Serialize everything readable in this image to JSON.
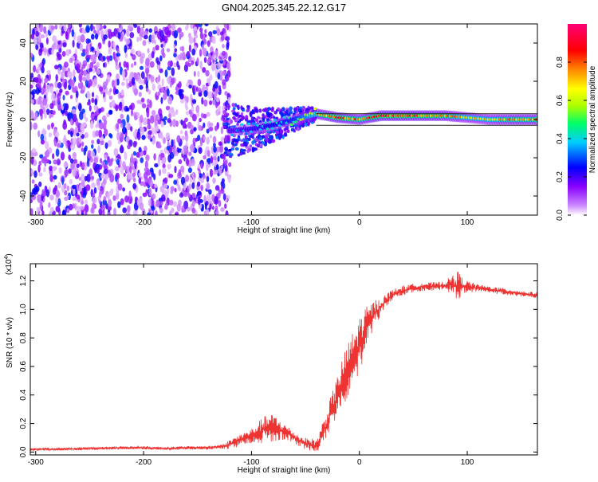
{
  "title": "GN04.2025.345.22.12.G17",
  "colors": {
    "snr_line": "#ee3333",
    "spec_band": "#222222",
    "colorbar": [
      "#ffffff",
      "#cc88ff",
      "#8800ff",
      "#0000ff",
      "#00ccff",
      "#00ff66",
      "#aaff00",
      "#ffff00",
      "#ff8800",
      "#ff0000",
      "#ff0077"
    ]
  },
  "chart_data": [
    {
      "type": "heatmap",
      "xlabel": "Height of straight line (km)",
      "ylabel": "Frequency (Hz)",
      "xlim": [
        -305,
        165
      ],
      "ylim": [
        -50,
        50
      ],
      "x_ticks": [
        -300,
        -200,
        -100,
        0,
        100
      ],
      "x_tick_labels": [
        "-300",
        "-200",
        "-100",
        "0",
        "100"
      ],
      "y_ticks": [
        -40,
        -20,
        0,
        20,
        40
      ],
      "y_tick_labels": [
        "-40",
        "-20",
        "0",
        "20",
        "40"
      ],
      "colorbar": {
        "label": "Normalized spectral amplitude",
        "range": [
          0,
          1
        ],
        "ticks": [
          0.0,
          0.2,
          0.4,
          0.6,
          0.8
        ],
        "tick_labels": [
          "0.0",
          "0.2",
          "0.4",
          "0.6",
          "0.8"
        ]
      },
      "noise_region_x": [
        -305,
        -120
      ],
      "signal_band": {
        "x": [
          -120,
          -100,
          -80,
          -60,
          -40,
          -20,
          0,
          20,
          40,
          60,
          80,
          100,
          120,
          140,
          165
        ],
        "center_hz": [
          -6,
          -5,
          -3,
          0,
          3,
          1,
          0,
          2,
          2,
          2,
          2,
          1,
          0,
          0,
          0
        ],
        "peak_amplitude": [
          0.35,
          0.4,
          0.45,
          0.5,
          0.75,
          0.9,
          0.8,
          0.9,
          0.9,
          0.85,
          0.85,
          0.7,
          0.7,
          0.8,
          0.8
        ]
      },
      "box_frequency_hz": [
        -3,
        3
      ]
    },
    {
      "type": "line",
      "xlabel": "Height of straight line (km)",
      "ylabel": "SNR (10 * v/v)",
      "multiplier_label": "(x10",
      "multiplier_exp": "4",
      "multiplier_close": ")",
      "xlim": [
        -305,
        165
      ],
      "ylim": [
        -0.02,
        1.32
      ],
      "x_ticks": [
        -300,
        -200,
        -100,
        0,
        100
      ],
      "x_tick_labels": [
        "-300",
        "-200",
        "-100",
        "0",
        "100"
      ],
      "y_ticks": [
        0.0,
        0.2,
        0.4,
        0.6,
        0.8,
        1.0,
        1.2
      ],
      "y_tick_labels": [
        "0.0",
        "0.2",
        "0.4",
        "0.6",
        "0.8",
        "1.0",
        "1.2"
      ],
      "series": [
        {
          "x": [
            -305,
            -280,
            -250,
            -220,
            -200,
            -180,
            -160,
            -140,
            -125,
            -115,
            -105,
            -95,
            -88,
            -80,
            -72,
            -64,
            -56,
            -50,
            -44,
            -40,
            -37,
            -35,
            -30,
            -25,
            -20,
            -15,
            -10,
            -5,
            0,
            5,
            10,
            15,
            20,
            25,
            30,
            40,
            50,
            60,
            70,
            80,
            90,
            100,
            110,
            120,
            130,
            140,
            150,
            165
          ],
          "y": [
            0.02,
            0.02,
            0.025,
            0.03,
            0.03,
            0.025,
            0.03,
            0.03,
            0.04,
            0.07,
            0.1,
            0.13,
            0.16,
            0.17,
            0.15,
            0.12,
            0.08,
            0.06,
            0.05,
            0.04,
            0.08,
            0.12,
            0.2,
            0.3,
            0.4,
            0.5,
            0.58,
            0.66,
            0.75,
            0.85,
            0.92,
            0.98,
            1.02,
            1.06,
            1.1,
            1.13,
            1.15,
            1.16,
            1.16,
            1.17,
            1.17,
            1.16,
            1.15,
            1.14,
            1.13,
            1.12,
            1.11,
            1.1
          ]
        }
      ],
      "noise": {
        "x": [
          -305,
          -150,
          -130,
          -115,
          -100,
          -90,
          -80,
          -70,
          -60,
          -50,
          -40,
          -30,
          -20,
          -10,
          0,
          10,
          20,
          30,
          50,
          80,
          88,
          92,
          96,
          110,
          165
        ],
        "amp": [
          0.01,
          0.012,
          0.015,
          0.04,
          0.05,
          0.09,
          0.1,
          0.06,
          0.04,
          0.04,
          0.05,
          0.1,
          0.15,
          0.2,
          0.2,
          0.12,
          0.06,
          0.04,
          0.03,
          0.03,
          0.09,
          0.1,
          0.05,
          0.025,
          0.02
        ]
      }
    }
  ]
}
